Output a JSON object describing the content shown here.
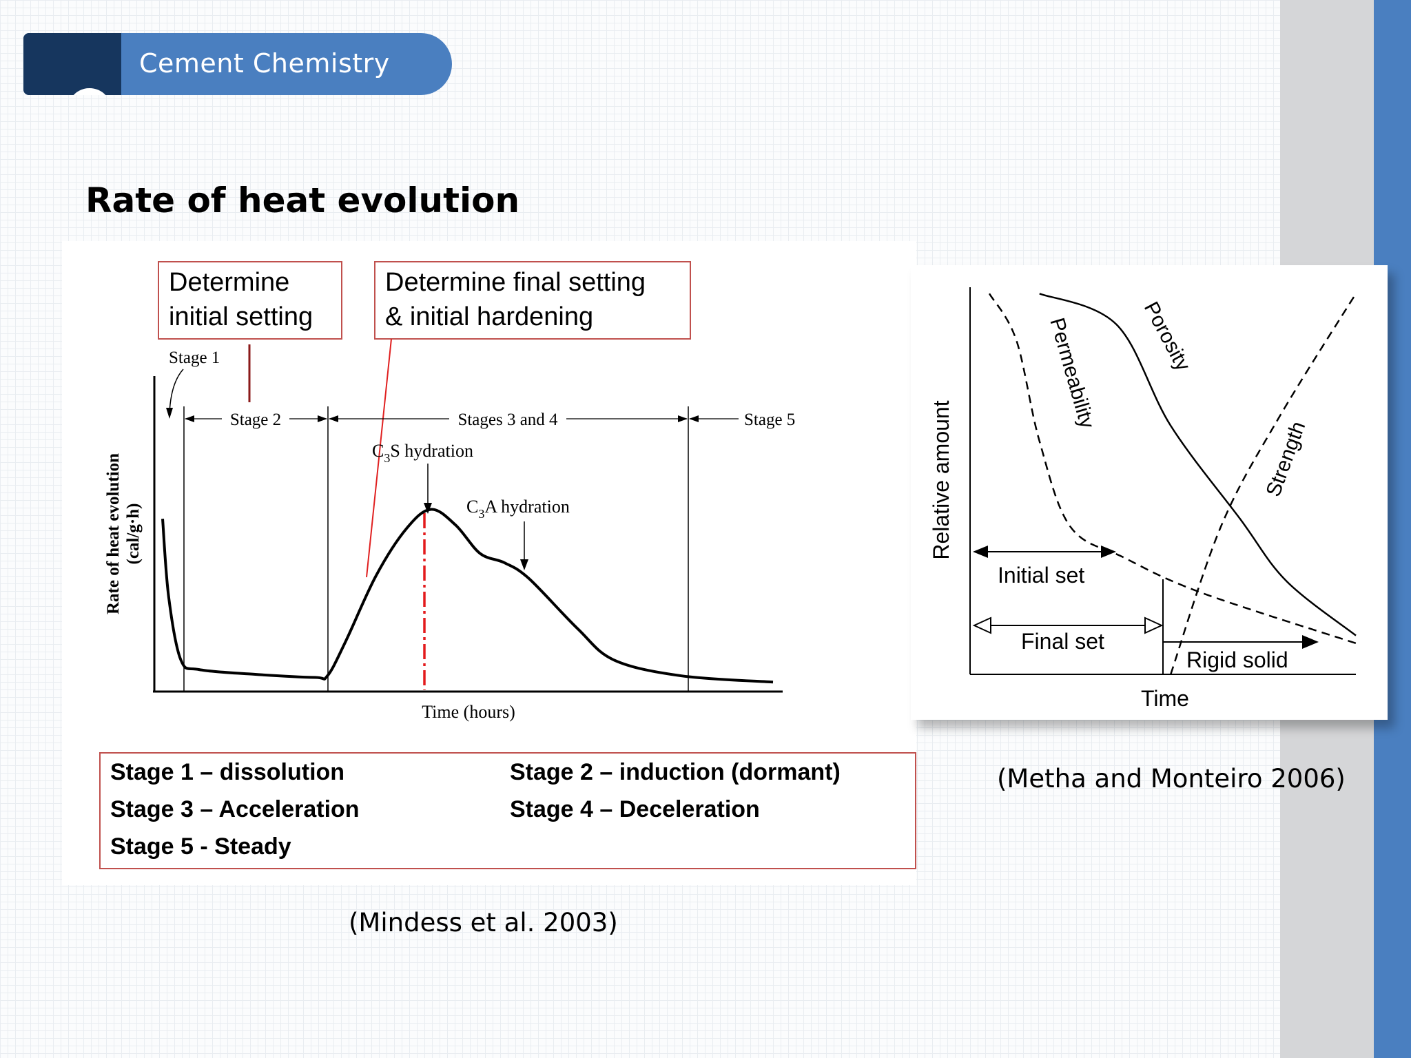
{
  "header": {
    "title": "Cement Chemistry"
  },
  "page": {
    "title": "Rate of heat evolution"
  },
  "annotations": {
    "initial_setting": [
      "Determine",
      "initial setting"
    ],
    "final_setting": [
      "Determine final setting",
      "& initial hardening"
    ]
  },
  "stages_legend": [
    "Stage 1 – dissolution",
    "Stage 2 – induction (dormant)",
    "Stage 3 – Acceleration",
    "Stage 4 – Deceleration",
    "Stage 5 - Steady"
  ],
  "citations": {
    "left": "(Mindess et al. 2003)",
    "right": "(Metha and Monteiro 2006)"
  },
  "colors": {
    "accent": "#4a7fc0",
    "dark": "#16365e",
    "annotation_border": "#c0504d",
    "peak_marker": "#e31a1c"
  },
  "chart_data": [
    {
      "type": "line",
      "xlabel": "Time (hours)",
      "ylabel": "Rate of heat evolution",
      "ylabel_unit": "(cal/g·h)",
      "stage_labels": [
        "Stage 1",
        "Stage 2",
        "Stages 3 and 4",
        "Stage 5"
      ],
      "peak_labels": [
        {
          "label_main": "C",
          "label_sub": "3",
          "label_rest": "S hydration"
        },
        {
          "label_main": "C",
          "label_sub": "3",
          "label_rest": "A hydration"
        }
      ],
      "series": [
        {
          "values": [
            [
              0.0,
              0.55
            ],
            [
              0.01,
              0.3
            ],
            [
              0.03,
              0.1
            ],
            [
              0.06,
              0.07
            ],
            [
              0.15,
              0.055
            ],
            [
              0.25,
              0.045
            ],
            [
              0.27,
              0.05
            ],
            [
              0.3,
              0.16
            ],
            [
              0.35,
              0.37
            ],
            [
              0.4,
              0.52
            ],
            [
              0.44,
              0.58
            ],
            [
              0.48,
              0.53
            ],
            [
              0.52,
              0.44
            ],
            [
              0.56,
              0.41
            ],
            [
              0.6,
              0.36
            ],
            [
              0.68,
              0.2
            ],
            [
              0.74,
              0.1
            ],
            [
              0.85,
              0.05
            ],
            [
              1.0,
              0.03
            ]
          ]
        }
      ]
    },
    {
      "type": "line",
      "xlabel": "Time",
      "ylabel": "Relative amount",
      "interval_labels": [
        "Initial set",
        "Final set",
        "Rigid solid"
      ],
      "series": [
        {
          "name": "Permeability",
          "values": [
            [
              0.05,
              0.98
            ],
            [
              0.12,
              0.86
            ],
            [
              0.18,
              0.6
            ],
            [
              0.26,
              0.38
            ],
            [
              0.4,
              0.3
            ],
            [
              0.6,
              0.21
            ],
            [
              1.0,
              0.08
            ]
          ]
        },
        {
          "name": "Porosity",
          "values": [
            [
              0.18,
              0.98
            ],
            [
              0.38,
              0.9
            ],
            [
              0.52,
              0.64
            ],
            [
              0.7,
              0.4
            ],
            [
              0.82,
              0.24
            ],
            [
              1.0,
              0.1
            ]
          ]
        },
        {
          "name": "Strength",
          "values": [
            [
              0.52,
              0.0
            ],
            [
              0.65,
              0.38
            ],
            [
              0.8,
              0.66
            ],
            [
              1.0,
              0.98
            ]
          ]
        }
      ]
    }
  ]
}
